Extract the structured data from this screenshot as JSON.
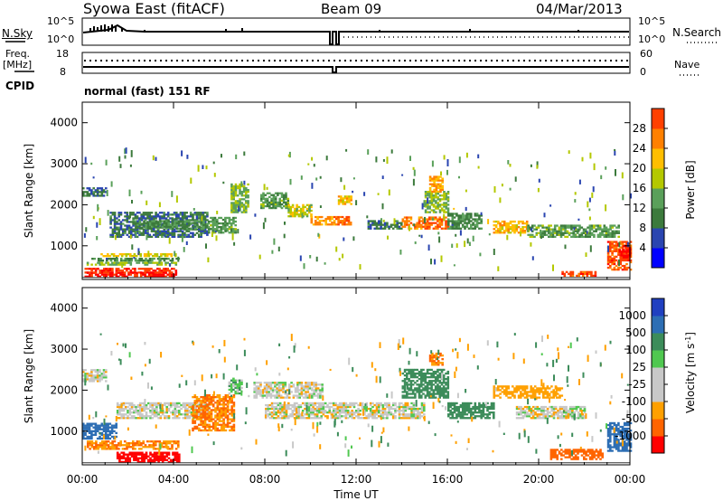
{
  "header": {
    "title": "Syowa East (fitACF)",
    "beam": "Beam 09",
    "date": "04/Mar/2013",
    "cpid_label": "CPID",
    "cpid_value": "normal (fast) 151 RF"
  },
  "summary_panels": {
    "nsky": {
      "left_label": "N.Sky",
      "left_ticks": [
        "10^5",
        "10^0"
      ],
      "right_label": "N.Search",
      "right_ticks": [
        "10^5",
        "10^0"
      ]
    },
    "freq": {
      "left_label_1": "Freq.",
      "left_label_2": "[MHz]",
      "left_ticks": [
        "18",
        "8"
      ],
      "right_label": "Nave",
      "right_ticks": [
        "60",
        "0"
      ]
    }
  },
  "colors": {
    "power_scale": [
      "#0000ff",
      "#2a45b0",
      "#3c7a3c",
      "#5aa05a",
      "#b4c800",
      "#ffbe00",
      "#ff8000",
      "#ff4000",
      "#ff0000"
    ],
    "velocity_scale": [
      "#2040c0",
      "#2d6eb4",
      "#3c8c5a",
      "#50c850",
      "#c8c8c8",
      "#c8c8c8",
      "#ffa000",
      "#ff6400",
      "#ff0000"
    ]
  },
  "chart_data": [
    {
      "type": "heatmap",
      "name": "power",
      "xlabel": "Time UT",
      "ylabel": "Slant Range [km]",
      "xlim": [
        0,
        24
      ],
      "ylim": [
        180,
        4500
      ],
      "x_ticks": [
        "00:00",
        "04:00",
        "08:00",
        "12:00",
        "16:00",
        "20:00",
        "00:00"
      ],
      "y_ticks": [
        "1000",
        "2000",
        "3000",
        "4000"
      ],
      "colorbar": {
        "label": "Power [dB]",
        "ticks": [
          "4",
          "8",
          "12",
          "16",
          "20",
          "24",
          "28"
        ],
        "range": [
          0,
          32
        ]
      },
      "bands": [
        {
          "t": [
            0.1,
            4.1
          ],
          "r": [
            230,
            330
          ],
          "value": 30
        },
        {
          "t": [
            0.1,
            4.1
          ],
          "r": [
            330,
            430
          ],
          "value": 28
        },
        {
          "t": [
            0.1,
            4.1
          ],
          "r": [
            520,
            580
          ],
          "value": 14
        },
        {
          "t": [
            0.4,
            4.2
          ],
          "r": [
            620,
            680
          ],
          "value": 10
        },
        {
          "t": [
            0.8,
            4.2
          ],
          "r": [
            730,
            790
          ],
          "value": 18
        },
        {
          "t": [
            0.0,
            1.0
          ],
          "r": [
            2200,
            2400
          ],
          "value": 8
        },
        {
          "t": [
            1.2,
            5.5
          ],
          "r": [
            1200,
            1800
          ],
          "value": 8
        },
        {
          "t": [
            2.3,
            5.3
          ],
          "r": [
            1400,
            1600
          ],
          "value": 10
        },
        {
          "t": [
            5.5,
            6.7
          ],
          "r": [
            1300,
            1700
          ],
          "value": 12
        },
        {
          "t": [
            6.5,
            7.3
          ],
          "r": [
            1800,
            2500
          ],
          "value": 14
        },
        {
          "t": [
            7.8,
            9.0
          ],
          "r": [
            1900,
            2300
          ],
          "value": 12
        },
        {
          "t": [
            9.0,
            10.0
          ],
          "r": [
            1700,
            2000
          ],
          "value": 16
        },
        {
          "t": [
            10.0,
            10.9
          ],
          "r": [
            1500,
            1700
          ],
          "value": 22
        },
        {
          "t": [
            11.0,
            11.8
          ],
          "r": [
            1500,
            1700
          ],
          "value": 24
        },
        {
          "t": [
            11.2,
            11.8
          ],
          "r": [
            2000,
            2200
          ],
          "value": 20
        },
        {
          "t": [
            12.5,
            14.0
          ],
          "r": [
            1400,
            1600
          ],
          "value": 8
        },
        {
          "t": [
            14.0,
            16.0
          ],
          "r": [
            1400,
            1700
          ],
          "value": 24
        },
        {
          "t": [
            15.0,
            16.0
          ],
          "r": [
            1800,
            2300
          ],
          "value": 14
        },
        {
          "t": [
            15.2,
            15.8
          ],
          "r": [
            2300,
            2700
          ],
          "value": 22
        },
        {
          "t": [
            16.0,
            17.5
          ],
          "r": [
            1400,
            1800
          ],
          "value": 10
        },
        {
          "t": [
            18.0,
            19.5
          ],
          "r": [
            1300,
            1600
          ],
          "value": 20
        },
        {
          "t": [
            19.5,
            23.5
          ],
          "r": [
            1200,
            1500
          ],
          "value": 12
        },
        {
          "t": [
            21.0,
            22.5
          ],
          "r": [
            250,
            350
          ],
          "value": 26
        },
        {
          "t": [
            23.0,
            24.0
          ],
          "r": [
            400,
            1100
          ],
          "value": 26
        },
        {
          "t": [
            23.5,
            24.0
          ],
          "r": [
            700,
            1000
          ],
          "value": 30
        }
      ]
    },
    {
      "type": "heatmap",
      "name": "velocity",
      "xlabel": "Time UT",
      "ylabel": "Slant Range [km]",
      "xlim": [
        0,
        24
      ],
      "ylim": [
        180,
        4500
      ],
      "x_ticks": [
        "00:00",
        "04:00",
        "08:00",
        "12:00",
        "16:00",
        "20:00",
        "00:00"
      ],
      "y_ticks": [
        "1000",
        "2000",
        "3000",
        "4000"
      ],
      "colorbar": {
        "label": "Velocity [m s^-1]",
        "ticks": [
          "1000",
          "500",
          "100",
          "25",
          "-25",
          "-100",
          "-500",
          "-1000"
        ]
      },
      "bands": [
        {
          "t": [
            1.5,
            4.2
          ],
          "r": [
            230,
            500
          ],
          "value": -1000
        },
        {
          "t": [
            0.2,
            4.2
          ],
          "r": [
            550,
            750
          ],
          "value": -300
        },
        {
          "t": [
            0.0,
            1.5
          ],
          "r": [
            800,
            1200
          ],
          "value": 700
        },
        {
          "t": [
            0.0,
            1.0
          ],
          "r": [
            2200,
            2500
          ],
          "value": 0
        },
        {
          "t": [
            1.5,
            5.5
          ],
          "r": [
            1300,
            1700
          ],
          "value": 0
        },
        {
          "t": [
            4.8,
            6.6
          ],
          "r": [
            1000,
            1900
          ],
          "value": -300
        },
        {
          "t": [
            6.4,
            7.0
          ],
          "r": [
            1900,
            2300
          ],
          "value": 50
        },
        {
          "t": [
            7.5,
            10.5
          ],
          "r": [
            1800,
            2200
          ],
          "value": 0
        },
        {
          "t": [
            8.0,
            15.0
          ],
          "r": [
            1300,
            1700
          ],
          "value": 0
        },
        {
          "t": [
            14.0,
            16.0
          ],
          "r": [
            1800,
            2500
          ],
          "value": 200
        },
        {
          "t": [
            15.2,
            15.8
          ],
          "r": [
            2600,
            2900
          ],
          "value": -300
        },
        {
          "t": [
            16.0,
            18.0
          ],
          "r": [
            1300,
            1700
          ],
          "value": 150
        },
        {
          "t": [
            18.0,
            21.0
          ],
          "r": [
            1800,
            2100
          ],
          "value": -100
        },
        {
          "t": [
            19.0,
            22.0
          ],
          "r": [
            1300,
            1600
          ],
          "value": 0
        },
        {
          "t": [
            20.5,
            22.8
          ],
          "r": [
            300,
            550
          ],
          "value": -500
        },
        {
          "t": [
            23.0,
            24.0
          ],
          "r": [
            500,
            1200
          ],
          "value": 700
        }
      ]
    }
  ]
}
